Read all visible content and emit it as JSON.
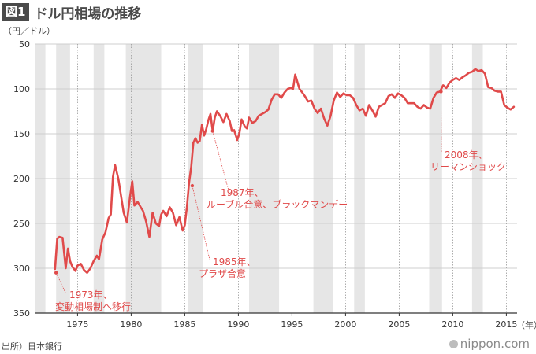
{
  "header": {
    "badge": "図1",
    "title": "ドル円相場の推移"
  },
  "unit_label": "（円／ドル）",
  "year_unit_label": "（年）",
  "source": "出所）日本銀行",
  "brand": {
    "name": "nippon",
    "suffix": ".com"
  },
  "colors": {
    "line": "#e04a4a",
    "band": "#e6e6e6",
    "grid": "#cfcfcf",
    "axis": "#333333",
    "annotation": "#e04a4a"
  },
  "chart_data": {
    "type": "line",
    "title": "ドル円相場の推移",
    "ylabel": "（円／ドル）",
    "xlabel": "（年）",
    "y_inverted": true,
    "ylim": [
      50,
      350
    ],
    "xlim": [
      1971.0,
      2016.0
    ],
    "yticks": [
      50,
      100,
      150,
      200,
      250,
      300,
      350
    ],
    "xticks": [
      1975,
      1980,
      1985,
      1990,
      1995,
      2000,
      2005,
      2010,
      2015
    ],
    "grid": {
      "horizontal": true,
      "vertical_dotted": true
    },
    "shaded_periods": [
      [
        1971.0,
        1972.0
      ],
      [
        1973.0,
        1974.3
      ],
      [
        1976.5,
        1977.5
      ],
      [
        1979.5,
        1982.8
      ],
      [
        1985.3,
        1986.7
      ],
      [
        1991.0,
        1993.8
      ],
      [
        1997.0,
        1998.8
      ],
      [
        2000.8,
        2001.8
      ],
      [
        2007.8,
        2009.0
      ],
      [
        2011.8,
        2012.8
      ]
    ],
    "series": [
      {
        "x": [
          1972.9,
          1973.1,
          1973.3,
          1973.6,
          1973.9,
          1974.1,
          1974.3,
          1974.5,
          1974.8,
          1975.0,
          1975.3,
          1975.6,
          1975.9,
          1976.2,
          1976.5,
          1976.8,
          1977.0,
          1977.3,
          1977.6,
          1977.9,
          1978.1,
          1978.3,
          1978.5,
          1978.8,
          1979.0,
          1979.3,
          1979.6,
          1979.9,
          1980.1,
          1980.3,
          1980.6,
          1980.9,
          1981.1,
          1981.4,
          1981.7,
          1982.0,
          1982.3,
          1982.6,
          1982.8,
          1983.0,
          1983.3,
          1983.6,
          1983.9,
          1984.2,
          1984.5,
          1984.8,
          1985.0,
          1985.2,
          1985.4,
          1985.6,
          1985.8,
          1986.0,
          1986.2,
          1986.4,
          1986.6,
          1986.8,
          1987.0,
          1987.2,
          1987.4,
          1987.6,
          1987.8,
          1988.0,
          1988.3,
          1988.6,
          1988.9,
          1989.2,
          1989.4,
          1989.6,
          1989.9,
          1990.1,
          1990.3,
          1990.6,
          1990.8,
          1991.0,
          1991.3,
          1991.6,
          1991.9,
          1992.2,
          1992.5,
          1992.8,
          1993.1,
          1993.4,
          1993.7,
          1994.0,
          1994.3,
          1994.6,
          1994.9,
          1995.1,
          1995.3,
          1995.5,
          1995.7,
          1995.9,
          1996.2,
          1996.5,
          1996.8,
          1997.1,
          1997.4,
          1997.7,
          1998.0,
          1998.3,
          1998.6,
          1998.9,
          1999.2,
          1999.5,
          1999.8,
          2000.1,
          2000.4,
          2000.7,
          2001.0,
          2001.3,
          2001.6,
          2001.9,
          2002.2,
          2002.5,
          2002.8,
          2003.1,
          2003.4,
          2003.7,
          2004.0,
          2004.3,
          2004.6,
          2004.9,
          2005.2,
          2005.5,
          2005.8,
          2006.1,
          2006.4,
          2006.7,
          2007.0,
          2007.3,
          2007.6,
          2007.9,
          2008.2,
          2008.5,
          2008.8,
          2009.1,
          2009.4,
          2009.7,
          2010.0,
          2010.3,
          2010.6,
          2010.9,
          2011.2,
          2011.5,
          2011.8,
          2012.1,
          2012.4,
          2012.7,
          2013.0,
          2013.3,
          2013.6,
          2013.9,
          2014.2,
          2014.5,
          2014.8,
          2015.1,
          2015.4,
          2015.7
        ],
        "y": [
          301,
          267,
          265,
          266,
          300,
          278,
          292,
          298,
          303,
          297,
          295,
          302,
          305,
          300,
          292,
          286,
          290,
          268,
          260,
          244,
          240,
          198,
          185,
          200,
          215,
          238,
          249,
          220,
          203,
          230,
          226,
          232,
          236,
          248,
          265,
          238,
          250,
          253,
          240,
          236,
          242,
          232,
          238,
          252,
          243,
          258,
          252,
          232,
          205,
          187,
          160,
          155,
          160,
          158,
          140,
          152,
          145,
          135,
          128,
          147,
          132,
          125,
          130,
          137,
          128,
          136,
          147,
          146,
          157,
          149,
          134,
          142,
          144,
          132,
          138,
          136,
          130,
          128,
          126,
          123,
          112,
          106,
          106,
          110,
          104,
          100,
          99,
          100,
          84,
          92,
          100,
          103,
          108,
          114,
          113,
          122,
          127,
          122,
          133,
          141,
          130,
          113,
          104,
          109,
          105,
          107,
          107,
          110,
          118,
          124,
          122,
          130,
          118,
          124,
          131,
          120,
          118,
          116,
          108,
          106,
          110,
          105,
          107,
          110,
          116,
          116,
          116,
          120,
          122,
          118,
          121,
          122,
          110,
          104,
          103,
          96,
          99,
          93,
          90,
          88,
          90,
          87,
          85,
          82,
          81,
          78,
          80,
          79,
          83,
          98,
          99,
          102,
          103,
          103,
          118,
          121,
          123,
          120
        ]
      }
    ],
    "annotations": [
      {
        "lines": [
          "1973年、",
          "変動相場制へ移行"
        ],
        "point": [
          1973.0,
          305
        ]
      },
      {
        "lines": [
          "1985年、",
          "プラザ合意"
        ],
        "point": [
          1985.7,
          208
        ]
      },
      {
        "lines": [
          "1987年、",
          "ルーブル合意、ブラックマンデー"
        ],
        "point": [
          1987.6,
          147
        ]
      },
      {
        "lines": [
          "2008年、",
          "リーマンショック"
        ],
        "point": [
          2008.9,
          103
        ]
      }
    ]
  }
}
